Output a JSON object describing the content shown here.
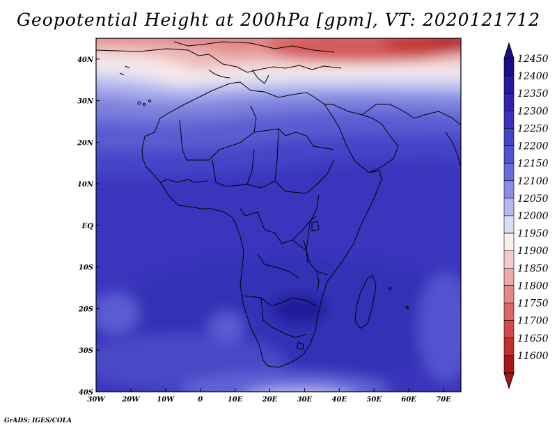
{
  "title": "Geopotential Height at 200hPa [gpm], VT: 2020121712",
  "credit": "GrADS: IGES/COLA",
  "map": {
    "lon_labels": [
      "30W",
      "20W",
      "10W",
      "0",
      "10E",
      "20E",
      "30E",
      "40E",
      "50E",
      "60E",
      "70E"
    ],
    "lon_values": [
      -30,
      -20,
      -10,
      0,
      10,
      20,
      30,
      40,
      50,
      60,
      70
    ],
    "lat_labels": [
      "40N",
      "30N",
      "20N",
      "10N",
      "EQ",
      "10S",
      "20S",
      "30S",
      "40S"
    ],
    "lat_values": [
      40,
      30,
      20,
      10,
      0,
      -10,
      -20,
      -30,
      -40
    ],
    "lon_range": [
      -30,
      75
    ],
    "lat_range": [
      -40,
      45
    ]
  },
  "colorbar": {
    "levels": [
      "12450",
      "12400",
      "12350",
      "12300",
      "12250",
      "12200",
      "12150",
      "12100",
      "12050",
      "12000",
      "11950",
      "11900",
      "11850",
      "11800",
      "11750",
      "11700",
      "11650",
      "11600"
    ],
    "colors": [
      "#1a0d8c",
      "#281aa0",
      "#3322b0",
      "#3a32bf",
      "#4444c8",
      "#5253d0",
      "#6a6cd8",
      "#8a8ee2",
      "#b3b8ee",
      "#dcdef8",
      "#fbeeee",
      "#f4cccc",
      "#eeaaaa",
      "#e58888",
      "#dc6666",
      "#d34848",
      "#c62e2e",
      "#a81616"
    ]
  }
}
